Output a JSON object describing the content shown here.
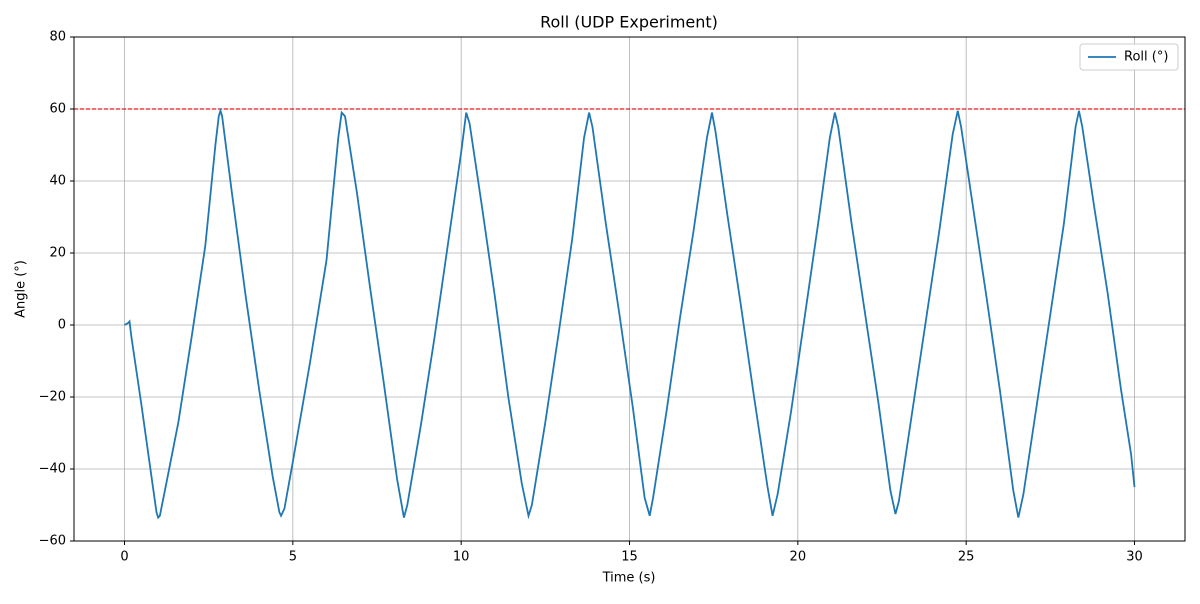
{
  "chart_data": {
    "type": "line",
    "title": "Roll (UDP Experiment)",
    "x_label": "Time (s)",
    "y_label": "Angle (°)",
    "x": [
      0,
      0.1,
      0.15,
      0.2,
      0.5,
      0.8,
      0.95,
      1.0,
      1.05,
      1.2,
      1.6,
      2.0,
      2.4,
      2.7,
      2.8,
      2.85,
      2.9,
      3.2,
      3.6,
      4.0,
      4.4,
      4.6,
      4.65,
      4.75,
      5.0,
      5.5,
      6.0,
      6.35,
      6.45,
      6.55,
      6.9,
      7.3,
      7.7,
      8.1,
      8.3,
      8.4,
      8.8,
      9.2,
      9.6,
      10.0,
      10.15,
      10.25,
      10.6,
      11.0,
      11.4,
      11.8,
      12.0,
      12.1,
      12.5,
      12.9,
      13.3,
      13.65,
      13.8,
      13.9,
      14.3,
      14.7,
      15.1,
      15.45,
      15.6,
      15.7,
      16.1,
      16.5,
      16.9,
      17.3,
      17.45,
      17.55,
      17.9,
      18.3,
      18.7,
      19.1,
      19.25,
      19.4,
      19.8,
      20.2,
      20.6,
      20.95,
      21.1,
      21.2,
      21.6,
      22.0,
      22.4,
      22.75,
      22.9,
      23.0,
      23.4,
      23.8,
      24.2,
      24.6,
      24.75,
      24.85,
      25.2,
      25.6,
      26.0,
      26.4,
      26.55,
      26.7,
      27.1,
      27.5,
      27.9,
      28.25,
      28.35,
      28.45,
      28.8,
      29.2,
      29.6,
      29.9,
      30.0
    ],
    "series": [
      {
        "name": "Roll (°)",
        "color": "#1f77b4",
        "values": [
          0,
          0.5,
          1,
          -3,
          -22,
          -42,
          -52,
          -53.5,
          -53,
          -46,
          -27,
          -3,
          22,
          50,
          58,
          59.5,
          58,
          36,
          8,
          -18,
          -42,
          -52,
          -53,
          -51,
          -38,
          -11,
          18,
          52,
          59,
          58,
          37,
          10,
          -16,
          -43,
          -53.5,
          -50,
          -28,
          -4,
          22,
          48,
          59,
          56,
          34,
          8,
          -20,
          -44,
          -53,
          -50,
          -27,
          -2,
          24,
          52,
          59,
          55,
          28,
          3,
          -23,
          -48,
          -53,
          -48,
          -24,
          2,
          26,
          52,
          59,
          54,
          31,
          6,
          -20,
          -45,
          -53,
          -47,
          -24,
          2,
          28,
          52,
          59,
          55,
          28,
          3,
          -22,
          -46,
          -52.5,
          -49,
          -24,
          1,
          26,
          53,
          59.5,
          55,
          33,
          8,
          -18,
          -46,
          -53.5,
          -47,
          -22,
          3,
          28,
          55,
          59.5,
          55,
          33,
          9,
          -18,
          -36,
          -45
        ]
      }
    ],
    "hline": {
      "value": 60,
      "color": "#e31a1c"
    },
    "xlim": [
      -1.5,
      31.5
    ],
    "xticks": [
      0,
      5,
      10,
      15,
      20,
      25,
      30
    ],
    "ylim": [
      -60,
      80
    ],
    "yticks": [
      {
        "value": -60,
        "label": "−60"
      },
      {
        "value": -40,
        "label": "−40"
      },
      {
        "value": -20,
        "label": "−20"
      },
      0,
      20,
      40,
      60,
      80
    ],
    "grid": true,
    "legend": "upper right"
  }
}
